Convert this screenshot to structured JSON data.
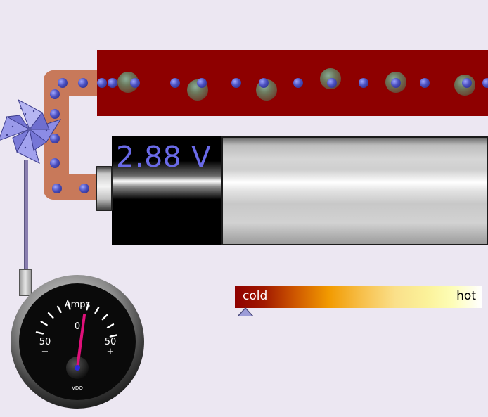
{
  "battery": {
    "voltage_text": "2.88 V"
  },
  "thermometer": {
    "cold_label": "cold",
    "hot_label": "hot",
    "level": 0.04
  },
  "ammeter": {
    "title": "Amps",
    "zero_label": "0",
    "left_value": "50",
    "left_sign": "−",
    "right_value": "50",
    "right_sign": "+",
    "brand": "VDO"
  },
  "colors": {
    "resistor": "#8e0000",
    "wire": "#c8795a",
    "electron": "#4b4fbf",
    "voltage_text": "#6a6ae8",
    "pinwheel": "#8c8ce6",
    "needle": "#e0107a"
  },
  "icons": {
    "pinwheel": "pinwheel-icon",
    "thermometer_marker": "triangle-up-icon"
  }
}
